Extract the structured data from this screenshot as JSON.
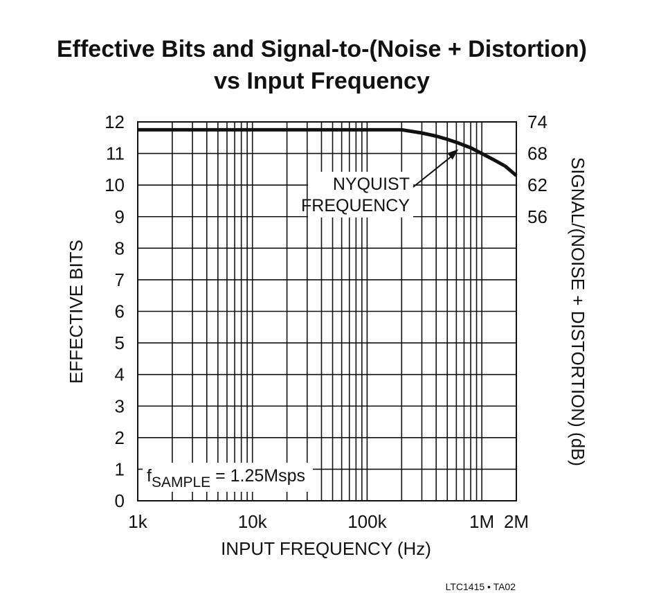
{
  "chart_data": {
    "type": "line",
    "title_line1": "Effective Bits and Signal-to-(Noise + Distortion)",
    "title_line2": "vs Input Frequency",
    "xlabel": "INPUT FREQUENCY (Hz)",
    "ylabel": "EFFECTIVE BITS",
    "y2label": "SIGNAL/(NOISE + DISTORTION) (dB)",
    "x_scale": "log",
    "xlim": [
      1000,
      2000000
    ],
    "ylim": [
      0,
      12
    ],
    "x_tick_labels": [
      {
        "value": 1000,
        "label": "1k"
      },
      {
        "value": 10000,
        "label": "10k"
      },
      {
        "value": 100000,
        "label": "100k"
      },
      {
        "value": 1000000,
        "label": "1M"
      },
      {
        "value": 2000000,
        "label": "2M"
      }
    ],
    "y_ticks": [
      0,
      1,
      2,
      3,
      4,
      5,
      6,
      7,
      8,
      9,
      10,
      11,
      12
    ],
    "y2_ticks": [
      {
        "bits": 12,
        "label": "74"
      },
      {
        "bits": 11,
        "label": "68"
      },
      {
        "bits": 10,
        "label": "62"
      },
      {
        "bits": 9,
        "label": "56"
      }
    ],
    "grid": true,
    "series": [
      {
        "x": [
          1000,
          10000,
          100000,
          200000,
          300000,
          400000,
          500000,
          625000,
          800000,
          1000000,
          1300000,
          1600000,
          2000000
        ],
        "y": [
          11.75,
          11.75,
          11.75,
          11.75,
          11.65,
          11.55,
          11.45,
          11.33,
          11.18,
          11.0,
          10.78,
          10.6,
          10.3
        ]
      }
    ],
    "annotations": {
      "nyquist_line1": "NYQUIST",
      "nyquist_line2": "FREQUENCY",
      "nyquist_x": 625000,
      "sample_prefix": "f",
      "sample_sub": "SAMPLE",
      "sample_suffix": " = 1.25Msps"
    },
    "footer": "LTC1415 • TA02"
  }
}
